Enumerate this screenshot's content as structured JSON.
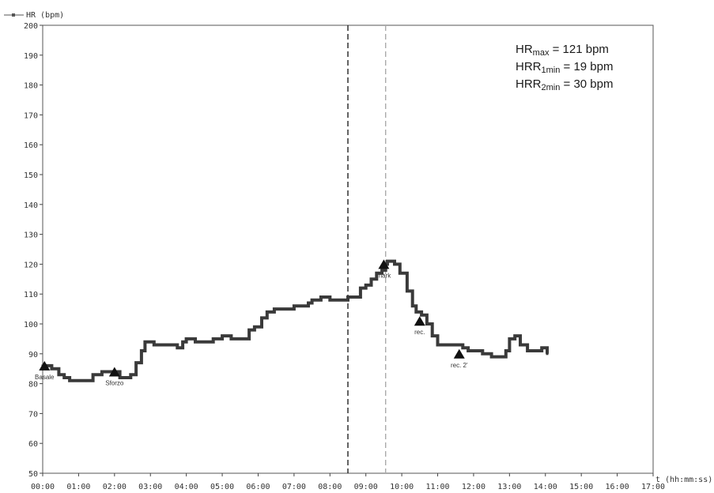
{
  "chart_data": {
    "type": "line",
    "legend": {
      "label": "HR (bpm)",
      "position": "top-left"
    },
    "xlabel": "t (hh:mm:ss)",
    "xlim": [
      0,
      17
    ],
    "ylim": [
      50,
      200
    ],
    "x_ticks": [
      "00:00",
      "01:00",
      "02:00",
      "03:00",
      "04:00",
      "05:00",
      "06:00",
      "07:00",
      "08:00",
      "09:00",
      "10:00",
      "11:00",
      "12:00",
      "13:00",
      "14:00",
      "15:00",
      "16:00",
      "17:00"
    ],
    "y_ticks": [
      50,
      60,
      70,
      80,
      90,
      100,
      110,
      120,
      130,
      140,
      150,
      160,
      170,
      180,
      190,
      200
    ],
    "grid": false,
    "series": [
      {
        "name": "HR (bpm)",
        "color": "#3a3a3a",
        "x": [
          0.0,
          0.1,
          0.25,
          0.45,
          0.6,
          0.75,
          0.85,
          1.0,
          1.2,
          1.4,
          1.5,
          1.65,
          1.8,
          2.0,
          2.15,
          2.3,
          2.45,
          2.6,
          2.75,
          2.85,
          2.95,
          3.1,
          3.3,
          3.5,
          3.75,
          3.9,
          4.0,
          4.25,
          4.5,
          4.75,
          5.0,
          5.25,
          5.5,
          5.75,
          5.9,
          6.1,
          6.25,
          6.45,
          6.75,
          7.0,
          7.25,
          7.4,
          7.5,
          7.75,
          8.0,
          8.25,
          8.5,
          8.65,
          8.85,
          9.0,
          9.15,
          9.3,
          9.45,
          9.55,
          9.6,
          9.7,
          9.8,
          9.95,
          10.15,
          10.3,
          10.4,
          10.55,
          10.7,
          10.85,
          11.0,
          11.15,
          11.3,
          11.5,
          11.7,
          11.85,
          12.0,
          12.25,
          12.5,
          12.65,
          12.8,
          12.9,
          13.0,
          13.15,
          13.3,
          13.5,
          13.75,
          13.9,
          14.05
        ],
        "y": [
          86,
          86,
          85,
          83,
          82,
          81,
          81,
          81,
          81,
          83,
          83,
          84,
          84,
          84,
          82,
          82,
          83,
          87,
          91,
          94,
          94,
          93,
          93,
          93,
          92,
          94,
          95,
          94,
          94,
          95,
          96,
          95,
          95,
          98,
          99,
          102,
          104,
          105,
          105,
          106,
          106,
          107,
          108,
          109,
          108,
          108,
          109,
          109,
          112,
          113,
          115,
          117,
          118,
          120,
          121,
          121,
          120,
          117,
          111,
          106,
          104,
          103,
          100,
          96,
          93,
          93,
          93,
          93,
          92,
          91,
          91,
          90,
          89,
          89,
          89,
          91,
          95,
          96,
          93,
          91,
          91,
          92,
          90
        ]
      }
    ],
    "markers": [
      {
        "label": "Basale",
        "x": 0.05,
        "y": 86
      },
      {
        "label": "Sforzo",
        "x": 2.0,
        "y": 84
      },
      {
        "label": "mark",
        "x": 9.5,
        "y": 120
      },
      {
        "label": "rec.",
        "x": 10.5,
        "y": 101
      },
      {
        "label": "rec. 2'",
        "x": 11.6,
        "y": 90
      }
    ],
    "vlines": [
      {
        "x": 8.5,
        "color": "#222222",
        "style": "dashed"
      },
      {
        "x": 9.55,
        "color": "#aaaaaa",
        "style": "dashed"
      }
    ],
    "annotations": [
      {
        "base": "HR",
        "sub": "max",
        "text": " = 121 bpm"
      },
      {
        "base": "HRR",
        "sub": "1min",
        "text": " = 19 bpm"
      },
      {
        "base": "HRR",
        "sub": "2min",
        "text": " = 30 bpm"
      }
    ]
  }
}
